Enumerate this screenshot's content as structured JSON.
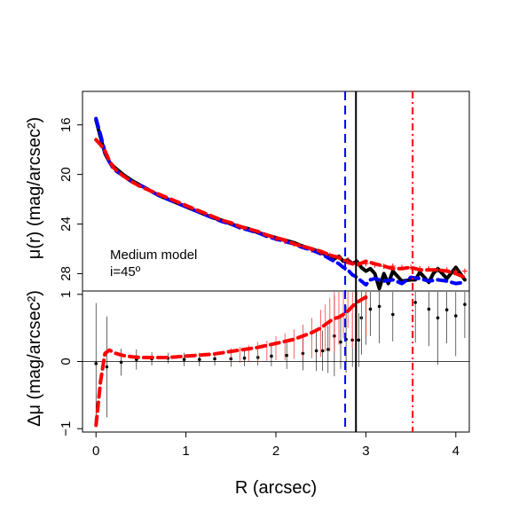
{
  "chart_data": [
    {
      "panel": "top",
      "type": "line",
      "ylabel": "μ(r) (mag/arcsec²)",
      "ylim": [
        29.4,
        13.3
      ],
      "y_inverted": true,
      "yticks": [
        16,
        20,
        24,
        28
      ],
      "ytick_labels": [
        "16",
        "20",
        "24",
        "28"
      ],
      "annotation": [
        "Medium model",
        "i=45º"
      ],
      "series": [
        {
          "color": "#000000",
          "style": "solid-thick",
          "x": [
            0.0,
            0.05,
            0.1,
            0.15,
            0.2,
            0.3,
            0.4,
            0.5,
            0.6,
            0.7,
            0.8,
            0.9,
            1.0,
            1.1,
            1.2,
            1.3,
            1.4,
            1.5,
            1.6,
            1.7,
            1.8,
            1.9,
            2.0,
            2.1,
            2.2,
            2.3,
            2.4,
            2.5,
            2.6,
            2.65,
            2.7,
            2.75,
            2.8,
            2.85,
            2.9,
            2.95,
            3.0,
            3.05,
            3.1,
            3.15,
            3.2,
            3.25,
            3.3,
            3.4,
            3.5,
            3.55,
            3.6,
            3.7,
            3.75,
            3.8,
            3.9,
            4.0,
            4.05,
            4.1
          ],
          "y": [
            15.6,
            17.0,
            18.3,
            19.0,
            19.4,
            20.0,
            20.5,
            20.9,
            21.3,
            21.7,
            22.0,
            22.3,
            22.6,
            22.9,
            23.2,
            23.5,
            23.7,
            24.0,
            24.2,
            24.4,
            24.7,
            24.9,
            25.1,
            25.3,
            25.5,
            25.8,
            26.0,
            26.3,
            26.6,
            26.8,
            26.6,
            27.0,
            26.9,
            27.2,
            27.0,
            27.5,
            27.8,
            27.6,
            28.0,
            29.2,
            28.0,
            28.8,
            27.8,
            28.6,
            28.5,
            28.5,
            27.9,
            28.7,
            28.0,
            27.6,
            28.4,
            27.5,
            28.0,
            28.5
          ]
        },
        {
          "color": "#0000ff",
          "style": "dashed-thick",
          "x": [
            0.0,
            0.05,
            0.1,
            0.15,
            0.2,
            0.3,
            0.4,
            0.5,
            0.6,
            0.7,
            0.8,
            0.9,
            1.0,
            1.1,
            1.2,
            1.3,
            1.4,
            1.5,
            1.6,
            1.7,
            1.8,
            1.9,
            2.0,
            2.1,
            2.2,
            2.3,
            2.4,
            2.5,
            2.6,
            2.7,
            2.75,
            2.8,
            2.85,
            2.9,
            2.95,
            3.0,
            3.05,
            3.1,
            3.15,
            3.2,
            3.3,
            3.4,
            3.5,
            3.6,
            3.7,
            3.8,
            3.9,
            4.0,
            4.1
          ],
          "y": [
            15.5,
            16.8,
            18.2,
            19.0,
            19.6,
            20.1,
            20.6,
            20.9,
            21.3,
            21.7,
            22.0,
            22.3,
            22.6,
            22.9,
            23.2,
            23.5,
            23.8,
            24.0,
            24.3,
            24.5,
            24.7,
            25.0,
            25.2,
            25.4,
            25.6,
            25.9,
            26.1,
            26.4,
            26.8,
            27.2,
            27.5,
            27.7,
            28.1,
            28.3,
            28.6,
            28.9,
            28.5,
            28.4,
            28.5,
            28.6,
            28.5,
            28.8,
            28.3,
            28.4,
            28.6,
            28.5,
            28.6,
            28.8,
            28.7
          ]
        },
        {
          "color": "#ff0000",
          "style": "dashed-thick",
          "x": [
            0.0,
            0.05,
            0.1,
            0.15,
            0.2,
            0.3,
            0.4,
            0.5,
            0.6,
            0.7,
            0.8,
            0.9,
            1.0,
            1.1,
            1.2,
            1.3,
            1.4,
            1.5,
            1.6,
            1.7,
            1.8,
            1.9,
            2.0,
            2.1,
            2.2,
            2.3,
            2.4,
            2.5,
            2.6,
            2.7,
            2.8,
            2.9,
            3.0,
            3.1,
            3.2,
            3.3,
            3.4,
            3.5,
            3.6,
            3.7,
            3.8,
            3.9,
            4.0,
            4.1
          ],
          "y": [
            17.2,
            17.6,
            18.1,
            18.9,
            19.5,
            20.1,
            20.6,
            21.0,
            21.3,
            21.6,
            21.9,
            22.2,
            22.5,
            22.8,
            23.1,
            23.4,
            23.7,
            23.9,
            24.2,
            24.4,
            24.6,
            24.9,
            25.1,
            25.3,
            25.6,
            25.8,
            26.0,
            26.2,
            26.5,
            26.7,
            27.1,
            27.3,
            27.0,
            27.2,
            27.4,
            27.6,
            27.6,
            27.5,
            27.7,
            27.7,
            27.7,
            27.8,
            28.0,
            28.3
          ]
        },
        {
          "color": "#ff0000",
          "style": "crosses",
          "x": [
            2.0,
            2.1,
            2.2,
            2.3,
            2.4,
            2.5,
            2.6,
            2.7,
            2.8,
            2.9,
            3.0,
            3.1,
            3.2,
            3.3,
            3.4,
            3.5,
            3.6,
            3.7,
            3.8,
            3.9,
            4.0,
            4.1
          ],
          "y": [
            25.2,
            25.4,
            25.6,
            25.8,
            26.1,
            26.3,
            26.5,
            26.7,
            26.9,
            27.1,
            27.2,
            27.3,
            27.4,
            27.4,
            27.5,
            27.5,
            27.6,
            27.6,
            27.7,
            27.7,
            27.8,
            27.8
          ]
        }
      ]
    },
    {
      "panel": "bottom",
      "type": "scatter",
      "xlabel": "R (arcsec)",
      "ylabel": "Δμ (mag/arcsec²)",
      "xlim": [
        -0.15,
        4.15
      ],
      "xticks": [
        0,
        1,
        2,
        3,
        4
      ],
      "xtick_labels": [
        "0",
        "1",
        "2",
        "3",
        "4"
      ],
      "ylim": [
        -1.05,
        1.05
      ],
      "yticks": [
        -1,
        0,
        1
      ],
      "ytick_labels": [
        "−1",
        "0",
        "1"
      ],
      "series": [
        {
          "color": "#000000",
          "style": "points-with-errorbars",
          "x": [
            0.0,
            0.12,
            0.28,
            0.45,
            0.62,
            0.8,
            0.98,
            1.15,
            1.32,
            1.5,
            1.65,
            1.8,
            1.95,
            2.12,
            2.3,
            2.45,
            2.52,
            2.58,
            2.65,
            2.72,
            2.78,
            2.85,
            2.92,
            2.95,
            3.0,
            3.05,
            3.15,
            3.3,
            3.55,
            3.7,
            3.8,
            3.9,
            4.0,
            4.1
          ],
          "y": [
            -0.03,
            -0.08,
            -0.01,
            0.03,
            0.04,
            0.05,
            0.03,
            0.03,
            0.04,
            0.04,
            0.05,
            0.06,
            0.08,
            0.09,
            0.12,
            0.16,
            0.16,
            0.18,
            0.38,
            0.29,
            0.33,
            0.32,
            0.32,
            0.65,
            0.95,
            0.78,
            0.82,
            0.7,
            0.88,
            0.78,
            0.65,
            0.77,
            0.68,
            0.85
          ],
          "err": [
            0.9,
            0.75,
            0.2,
            0.15,
            0.1,
            0.08,
            0.1,
            0.1,
            0.1,
            0.12,
            0.12,
            0.12,
            0.15,
            0.2,
            0.25,
            0.3,
            0.3,
            0.35,
            0.6,
            0.4,
            0.5,
            0.4,
            0.4,
            0.55,
            0.7,
            0.4,
            0.55,
            0.4,
            0.6,
            0.55,
            0.7,
            0.5,
            0.6,
            0.5
          ]
        },
        {
          "color": "#ff0000",
          "style": "errorbars",
          "x": [
            1.5,
            1.6,
            1.7,
            1.8,
            1.9,
            2.0,
            2.1,
            2.2,
            2.3,
            2.4,
            2.5,
            2.55,
            2.6,
            2.65,
            2.7,
            2.75,
            2.8,
            2.85,
            2.9,
            2.95,
            3.0
          ],
          "y": [
            0.1,
            0.1,
            0.12,
            0.14,
            0.16,
            0.2,
            0.22,
            0.26,
            0.3,
            0.35,
            0.42,
            0.5,
            0.55,
            0.6,
            0.75,
            0.85,
            0.95,
            0.7,
            0.8,
            0.9,
            0.95
          ],
          "err": [
            0.1,
            0.12,
            0.12,
            0.15,
            0.15,
            0.18,
            0.2,
            0.22,
            0.25,
            0.3,
            0.35,
            0.35,
            0.4,
            0.45,
            0.5,
            0.5,
            0.45,
            0.5,
            0.5,
            0.55,
            0.55
          ]
        },
        {
          "color": "#ff0000",
          "style": "dashed-thick",
          "x": [
            0.0,
            0.05,
            0.1,
            0.15,
            0.2,
            0.3,
            0.4,
            0.5,
            0.6,
            0.7,
            0.8,
            0.9,
            1.0,
            1.1,
            1.2,
            1.3,
            1.4,
            1.5,
            1.6,
            1.7,
            1.8,
            1.9,
            2.0,
            2.1,
            2.2,
            2.3,
            2.4,
            2.5,
            2.6,
            2.65,
            2.7,
            2.75,
            2.8,
            2.85,
            2.9,
            2.95,
            3.0
          ],
          "y": [
            -0.95,
            -0.3,
            0.12,
            0.17,
            0.13,
            0.09,
            0.07,
            0.06,
            0.06,
            0.06,
            0.06,
            0.07,
            0.08,
            0.09,
            0.1,
            0.11,
            0.13,
            0.15,
            0.17,
            0.19,
            0.21,
            0.24,
            0.27,
            0.3,
            0.33,
            0.38,
            0.43,
            0.5,
            0.6,
            0.64,
            0.66,
            0.7,
            0.75,
            0.82,
            0.88,
            0.92,
            0.96
          ]
        }
      ]
    }
  ],
  "vertical_lines": [
    {
      "x": 2.77,
      "color": "#0000ff",
      "style": "dashed"
    },
    {
      "x": 2.89,
      "color": "#000000",
      "style": "solid"
    },
    {
      "x": 3.52,
      "color": "#ff0000",
      "style": "dashdot"
    }
  ]
}
